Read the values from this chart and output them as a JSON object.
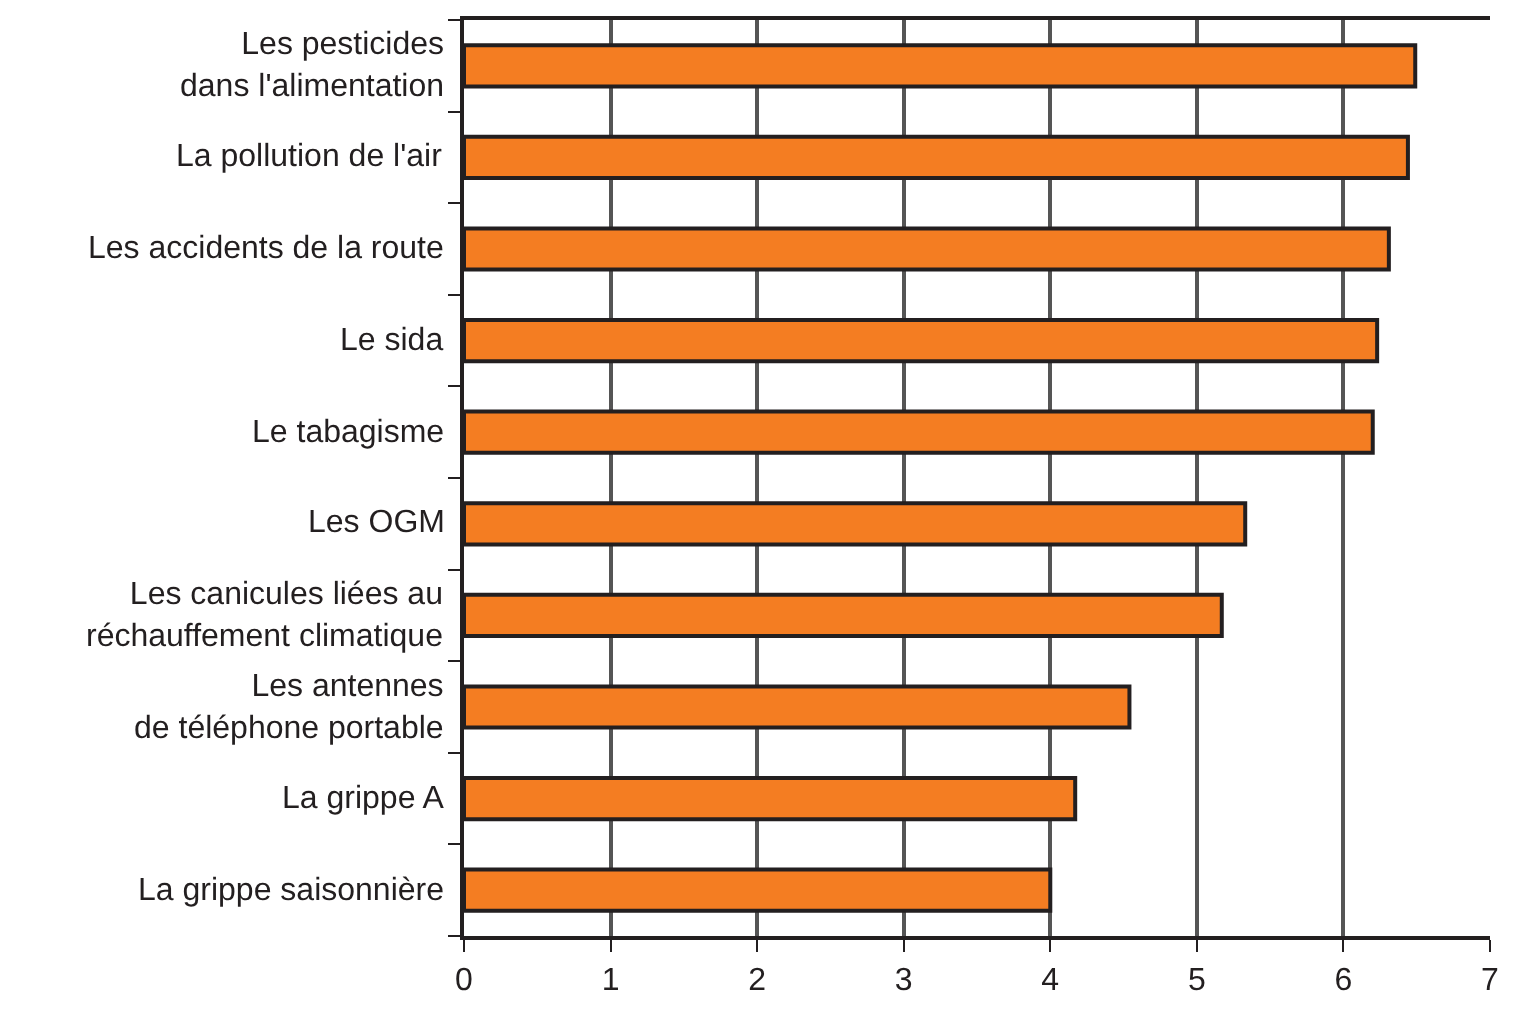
{
  "chart_data": {
    "type": "bar",
    "orientation": "horizontal",
    "categories": [
      "Les pesticides\ndans l'alimentation",
      "La pollution de l'air",
      "Les accidents de la route",
      "Le sida",
      "Le tabagisme",
      "Les OGM",
      "Les canicules liées au\nréchauffement climatique",
      "Les antennes\nde téléphone portable",
      "La grippe A",
      "La grippe saisonnière"
    ],
    "values": [
      6.49,
      6.44,
      6.31,
      6.23,
      6.2,
      5.33,
      5.17,
      4.54,
      4.17,
      4.0
    ],
    "color": "#f47d22",
    "xlim": [
      0,
      7
    ],
    "xticks": [
      0,
      1,
      2,
      3,
      4,
      5,
      6,
      7
    ],
    "grid": "x",
    "legend": false
  }
}
